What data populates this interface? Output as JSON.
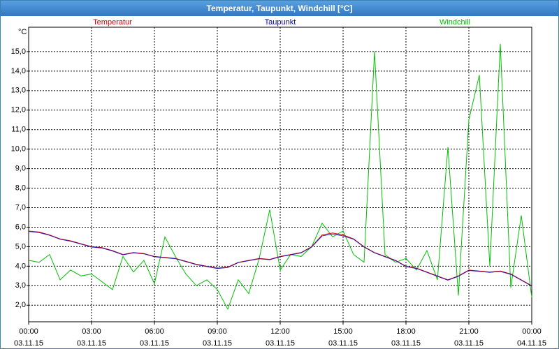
{
  "chart_data": {
    "type": "line",
    "title": "Temperatur, Taupunkt, Windchill [°C]",
    "y_unit": "°C",
    "x": [
      0,
      0.5,
      1,
      1.5,
      2,
      2.5,
      3,
      3.5,
      4,
      4.5,
      5,
      5.5,
      6,
      6.5,
      7,
      7.5,
      8,
      8.5,
      9,
      9.5,
      10,
      10.5,
      11,
      11.5,
      12,
      12.5,
      13,
      13.5,
      14,
      14.5,
      15,
      15.5,
      16,
      16.5,
      17,
      17.5,
      18,
      18.5,
      19,
      19.5,
      20,
      20.5,
      21,
      21.5,
      22,
      22.5,
      23,
      23.5,
      24
    ],
    "series": [
      {
        "name": "Temperatur",
        "color": "#e00000",
        "values": [
          5.8,
          5.75,
          5.6,
          5.4,
          5.3,
          5.15,
          5.0,
          4.95,
          4.8,
          4.6,
          4.7,
          4.65,
          4.5,
          4.45,
          4.4,
          4.25,
          4.1,
          4.0,
          3.9,
          3.95,
          4.2,
          4.3,
          4.4,
          4.35,
          4.5,
          4.6,
          4.7,
          5.0,
          5.6,
          5.7,
          5.6,
          5.4,
          5.0,
          4.7,
          4.5,
          4.3,
          4.0,
          3.9,
          3.7,
          3.5,
          3.3,
          3.5,
          3.8,
          3.75,
          3.7,
          3.75,
          3.6,
          3.3,
          3.0
        ]
      },
      {
        "name": "Taupunkt",
        "color": "#0000c0",
        "values": [
          5.78,
          5.72,
          5.58,
          5.38,
          5.28,
          5.13,
          4.98,
          4.93,
          4.78,
          4.58,
          4.68,
          4.63,
          4.48,
          4.43,
          4.38,
          4.23,
          4.08,
          3.98,
          3.88,
          3.93,
          4.18,
          4.28,
          4.38,
          4.33,
          4.48,
          4.58,
          4.68,
          4.98,
          5.55,
          5.65,
          5.55,
          5.38,
          4.98,
          4.68,
          4.48,
          4.28,
          3.98,
          3.88,
          3.68,
          3.48,
          3.28,
          3.48,
          3.78,
          3.73,
          3.68,
          3.73,
          3.58,
          3.28,
          2.98
        ]
      },
      {
        "name": "Windchill",
        "color": "#00c000",
        "values": [
          4.3,
          4.2,
          4.6,
          3.3,
          3.8,
          3.5,
          3.6,
          3.2,
          2.8,
          4.5,
          3.7,
          4.3,
          3.1,
          5.5,
          4.5,
          3.6,
          3.0,
          3.3,
          2.8,
          1.8,
          3.3,
          2.6,
          4.4,
          6.9,
          3.8,
          4.6,
          4.5,
          5.0,
          6.2,
          5.5,
          5.8,
          4.6,
          4.2,
          15.0,
          4.6,
          4.2,
          4.4,
          3.8,
          4.8,
          3.3,
          10.1,
          2.5,
          11.5,
          13.8,
          4.0,
          15.4,
          2.9,
          6.6,
          2.4
        ]
      }
    ],
    "xlim": [
      0,
      24
    ],
    "xticks": [
      {
        "value": 0,
        "label": "00:00\n03.11.15"
      },
      {
        "value": 3,
        "label": "03:00\n03.11.15"
      },
      {
        "value": 6,
        "label": "06:00\n03.11.15"
      },
      {
        "value": 9,
        "label": "09:00\n03.11.15"
      },
      {
        "value": 12,
        "label": "12:00\n03.11.15"
      },
      {
        "value": 15,
        "label": "15:00\n03.11.15"
      },
      {
        "value": 18,
        "label": "18:00\n03.11.15"
      },
      {
        "value": 21,
        "label": "21:00\n03.11.15"
      },
      {
        "value": 24,
        "label": "00:00\n04.11.15"
      }
    ],
    "ylim": [
      1.15,
      16.25
    ],
    "yticks": [
      {
        "value": 2,
        "label": "2,0"
      },
      {
        "value": 3,
        "label": "3,0"
      },
      {
        "value": 4,
        "label": "4,0"
      },
      {
        "value": 5,
        "label": "5,0"
      },
      {
        "value": 6,
        "label": "6,0"
      },
      {
        "value": 7,
        "label": "7,0"
      },
      {
        "value": 8,
        "label": "8,0"
      },
      {
        "value": 9,
        "label": "9,0"
      },
      {
        "value": 10,
        "label": "10,0"
      },
      {
        "value": 11,
        "label": "11,0"
      },
      {
        "value": 12,
        "label": "12,0"
      },
      {
        "value": 13,
        "label": "13,0"
      },
      {
        "value": 14,
        "label": "14,0"
      },
      {
        "value": 15,
        "label": "15,0"
      }
    ],
    "grid": true
  }
}
